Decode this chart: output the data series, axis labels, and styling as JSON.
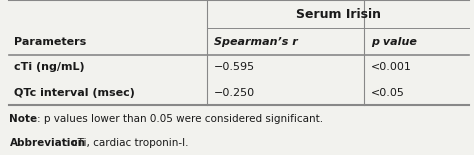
{
  "title": "Serum Irisin",
  "col_headers": [
    "Parameters",
    "Spearman’s r",
    "p value"
  ],
  "rows": [
    [
      "cTi (ng/mL)",
      "−0.595",
      "<0.001"
    ],
    [
      "QTc interval (msec)",
      "−0.250",
      "<0.05"
    ]
  ],
  "note_bold": "Note",
  "note_rest": ": p values lower than 0.05 were considered significant.",
  "abbr_bold": "Abbreviation",
  "abbr_rest": ": cTi, cardiac troponin-I.",
  "bg_color": "#f2f2ee",
  "line_color": "#888888",
  "text_color": "#1a1a1a",
  "figsize": [
    4.74,
    1.55
  ],
  "dpi": 100
}
